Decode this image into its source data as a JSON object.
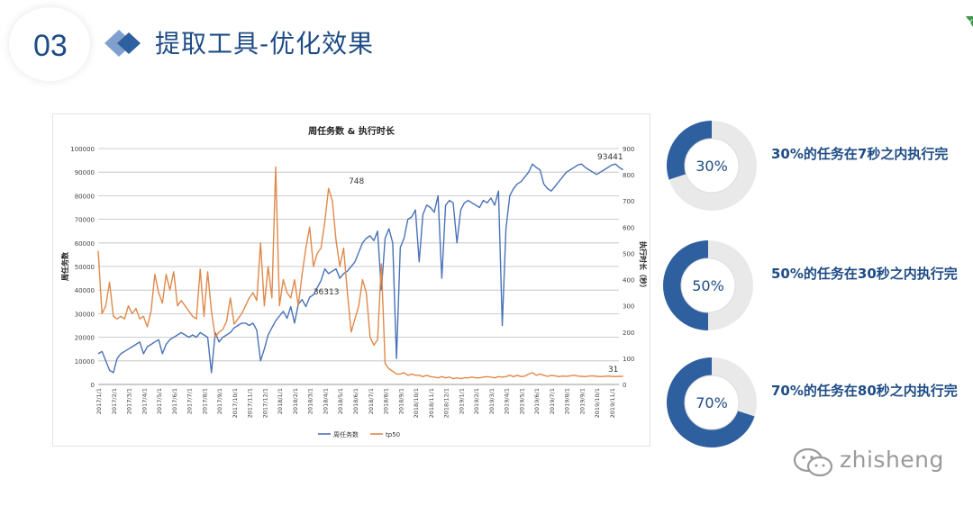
{
  "header": {
    "section_number": "03",
    "title": "提取工具-优化效果"
  },
  "chart_data": {
    "type": "line",
    "title": "周任务数 & 执行时长",
    "ylabel": "周任务数",
    "y2label": "执行时长（秒）",
    "ylim": [
      0,
      100000
    ],
    "y2lim": [
      0,
      900
    ],
    "y_ticks": [
      "0",
      "10000",
      "20000",
      "30000",
      "40000",
      "50000",
      "60000",
      "70000",
      "80000",
      "90000",
      "100000"
    ],
    "y2_ticks": [
      "0",
      "100",
      "200",
      "300",
      "400",
      "500",
      "600",
      "700",
      "800",
      "900"
    ],
    "x_ticks": [
      "2017/1/1",
      "2017/2/1",
      "2017/3/1",
      "2017/4/1",
      "2017/5/1",
      "2017/6/1",
      "2017/7/1",
      "2017/8/1",
      "2017/9/1",
      "2017/10/1",
      "2017/11/1",
      "2017/12/1",
      "2018/1/1",
      "2018/2/1",
      "2018/3/1",
      "2018/4/1",
      "2018/5/1",
      "2018/6/1",
      "2018/7/1",
      "2018/8/1",
      "2018/9/1",
      "2018/10/1",
      "2018/11/1",
      "2018/12/1",
      "2019/1/1",
      "2019/2/1",
      "2019/3/1",
      "2019/4/1",
      "2019/5/1",
      "2019/6/1",
      "2019/7/1",
      "2019/8/1",
      "2019/9/1",
      "2019/10/1",
      "2019/11/1"
    ],
    "grid": true,
    "legend_position": "bottom",
    "series": [
      {
        "name": "周任务数",
        "axis": "left",
        "color": "#4a72b8",
        "x": [
          0,
          0.25,
          0.5,
          0.75,
          1,
          1.25,
          1.5,
          1.75,
          2,
          2.25,
          2.5,
          2.75,
          3,
          3.25,
          3.5,
          3.75,
          4,
          4.25,
          4.5,
          4.75,
          5,
          5.25,
          5.5,
          5.75,
          6,
          6.25,
          6.5,
          6.75,
          7,
          7.25,
          7.5,
          7.75,
          8,
          8.25,
          8.5,
          8.75,
          9,
          9.25,
          9.5,
          9.75,
          10,
          10.25,
          10.5,
          10.75,
          11,
          11.25,
          11.5,
          11.75,
          12,
          12.25,
          12.5,
          12.75,
          13,
          13.25,
          13.5,
          13.75,
          14,
          14.25,
          14.5,
          14.75,
          15,
          15.25,
          15.5,
          15.75,
          16,
          16.25,
          16.5,
          16.75,
          17,
          17.25,
          17.5,
          17.75,
          18,
          18.25,
          18.5,
          18.75,
          19,
          19.25,
          19.5,
          19.75,
          20,
          20.25,
          20.5,
          20.75,
          21,
          21.25,
          21.5,
          21.75,
          22,
          22.25,
          22.5,
          22.75,
          23,
          23.25,
          23.5,
          23.75,
          24,
          24.25,
          24.5,
          24.75,
          25,
          25.25,
          25.5,
          25.75,
          26,
          26.25,
          26.5,
          26.75,
          27,
          27.25,
          27.5,
          27.75,
          28,
          28.25,
          28.5,
          28.75,
          29,
          29.25,
          29.5,
          29.75,
          30,
          30.25,
          30.5,
          30.75,
          31,
          31.25,
          31.5,
          31.75,
          32,
          32.25,
          32.5,
          32.75,
          33,
          33.25,
          33.5,
          33.75,
          34,
          34.25,
          34.5,
          34.75
        ],
        "values": [
          13000,
          14000,
          10000,
          6000,
          5000,
          11000,
          13000,
          14000,
          15000,
          16000,
          17000,
          18000,
          13000,
          16000,
          17000,
          18000,
          19000,
          13000,
          17000,
          19000,
          20000,
          21000,
          22000,
          21000,
          20000,
          21000,
          20000,
          22000,
          21000,
          20000,
          5000,
          22000,
          18000,
          20000,
          21000,
          22000,
          24000,
          25000,
          26000,
          26000,
          25000,
          26000,
          23000,
          10000,
          15000,
          21000,
          24000,
          27000,
          29000,
          31000,
          28000,
          33000,
          26000,
          34000,
          36000,
          33000,
          37000,
          38000,
          41000,
          44000,
          49000,
          47000,
          48000,
          49000,
          45000,
          47000,
          48000,
          50000,
          52000,
          56000,
          60000,
          62000,
          63000,
          61000,
          65000,
          40000,
          62000,
          66000,
          60000,
          11000,
          58000,
          62000,
          70000,
          71000,
          74000,
          52000,
          72000,
          76000,
          75000,
          73000,
          80000,
          45000,
          76000,
          78000,
          77000,
          60000,
          74000,
          77000,
          78000,
          77000,
          76000,
          75000,
          78000,
          77000,
          79000,
          76000,
          82000,
          25000,
          66000,
          80000,
          83000,
          85000,
          86000,
          88000,
          90000,
          93441,
          92000,
          91000,
          85000,
          83000,
          82000,
          84000,
          86000,
          88000,
          90000,
          91000,
          92000,
          93000,
          93441,
          92000,
          91000,
          90000,
          89000,
          90000,
          91000,
          92000,
          93000,
          93441,
          92000,
          91000
        ]
      },
      {
        "name": "tp50",
        "axis": "right",
        "color": "#e0894a",
        "x": [
          0,
          0.25,
          0.5,
          0.75,
          1,
          1.25,
          1.5,
          1.75,
          2,
          2.25,
          2.5,
          2.75,
          3,
          3.25,
          3.5,
          3.75,
          4,
          4.25,
          4.5,
          4.75,
          5,
          5.25,
          5.5,
          5.75,
          6,
          6.25,
          6.5,
          6.75,
          7,
          7.25,
          7.5,
          7.75,
          8,
          8.25,
          8.5,
          8.75,
          9,
          9.25,
          9.5,
          9.75,
          10,
          10.25,
          10.5,
          10.75,
          11,
          11.25,
          11.5,
          11.75,
          12,
          12.25,
          12.5,
          12.75,
          13,
          13.25,
          13.5,
          13.75,
          14,
          14.25,
          14.5,
          14.75,
          15,
          15.25,
          15.5,
          15.75,
          16,
          16.25,
          16.5,
          16.75,
          17,
          17.25,
          17.5,
          17.75,
          18,
          18.25,
          18.5,
          18.75,
          19,
          19.25,
          19.5,
          19.75,
          20,
          20.25,
          20.5,
          20.75,
          21,
          21.25,
          21.5,
          21.75,
          22,
          22.25,
          22.5,
          22.75,
          23,
          23.25,
          23.5,
          23.75,
          24,
          24.25,
          24.5,
          24.75,
          25,
          25.25,
          25.5,
          25.75,
          26,
          26.25,
          26.5,
          26.75,
          27,
          27.25,
          27.5,
          27.75,
          28,
          28.25,
          28.5,
          28.75,
          29,
          29.25,
          29.5,
          29.75,
          30,
          30.25,
          30.5,
          30.75,
          31,
          31.25,
          31.5,
          31.75,
          32,
          32.25,
          32.5,
          32.75,
          33,
          33.25,
          33.5,
          33.75,
          34,
          34.25,
          34.5,
          34.75
        ],
        "values": [
          510,
          270,
          300,
          390,
          260,
          250,
          260,
          250,
          300,
          270,
          290,
          250,
          260,
          220,
          280,
          420,
          350,
          310,
          420,
          360,
          430,
          300,
          320,
          300,
          280,
          260,
          250,
          440,
          260,
          430,
          280,
          180,
          200,
          210,
          240,
          330,
          230,
          250,
          270,
          300,
          330,
          350,
          320,
          540,
          300,
          450,
          330,
          830,
          300,
          400,
          350,
          330,
          400,
          300,
          420,
          520,
          600,
          450,
          500,
          520,
          620,
          748,
          700,
          550,
          450,
          520,
          350,
          200,
          250,
          300,
          400,
          350,
          180,
          150,
          170,
          460,
          80,
          60,
          50,
          40,
          40,
          45,
          35,
          40,
          35,
          35,
          30,
          35,
          30,
          28,
          25,
          30,
          25,
          28,
          22,
          25,
          22,
          25,
          25,
          28,
          25,
          25,
          28,
          30,
          28,
          25,
          30,
          28,
          30,
          35,
          30,
          35,
          30,
          32,
          40,
          45,
          35,
          40,
          35,
          31,
          35,
          33,
          30,
          32,
          31,
          33,
          35,
          32,
          31,
          30,
          32,
          33,
          31,
          30,
          31,
          32,
          31,
          30,
          31,
          31
        ]
      }
    ],
    "annotations": [
      {
        "text": "93441",
        "x": 33.9,
        "y": 93441,
        "axis": "left"
      },
      {
        "text": "36313",
        "x": 15.1,
        "y": 36313,
        "axis": "left"
      },
      {
        "text": "748",
        "x": 17.1,
        "y": 748,
        "axis": "right"
      },
      {
        "text": "31",
        "x": 34.1,
        "y": 31,
        "axis": "right"
      }
    ]
  },
  "stats": [
    {
      "percent": "30%",
      "fraction": 0.3,
      "label": "30%的任务在7秒之内执行完"
    },
    {
      "percent": "50%",
      "fraction": 0.5,
      "label": "50%的任务在30秒之内执行完"
    },
    {
      "percent": "70%",
      "fraction": 0.7,
      "label": "70%的任务在80秒之内执行完"
    }
  ],
  "colors": {
    "accent": "#1f4c86",
    "donut_fill": "#2e5f9e",
    "series_blue": "#4a72b8",
    "series_orange": "#e0894a"
  },
  "watermark": {
    "icon": "wechat-icon",
    "text": "zhisheng"
  }
}
